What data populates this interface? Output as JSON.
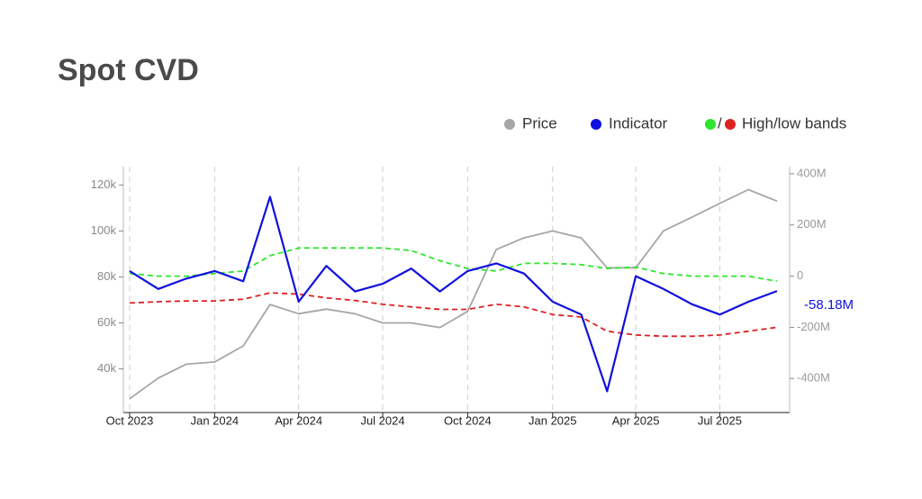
{
  "chart_data": {
    "type": "line",
    "title": "Spot CVD",
    "x": [
      "2023-10",
      "2023-11",
      "2023-12",
      "2024-01",
      "2024-02",
      "2024-03",
      "2024-04",
      "2024-05",
      "2024-06",
      "2024-07",
      "2024-08",
      "2024-09",
      "2024-10",
      "2024-11",
      "2024-12",
      "2025-01",
      "2025-02",
      "2025-03",
      "2025-04",
      "2025-05",
      "2025-06",
      "2025-07",
      "2025-08",
      "2025-09"
    ],
    "xlim": [
      "2023-10",
      "2025-09"
    ],
    "xticks": [
      {
        "value": "2023-10",
        "label": "Oct 2023"
      },
      {
        "value": "2024-01",
        "label": "Jan 2024"
      },
      {
        "value": "2024-04",
        "label": "Apr 2024"
      },
      {
        "value": "2024-07",
        "label": "Jul 2024"
      },
      {
        "value": "2024-10",
        "label": "Oct 2024"
      },
      {
        "value": "2025-01",
        "label": "Jan 2025"
      },
      {
        "value": "2025-04",
        "label": "Apr 2025"
      },
      {
        "value": "2025-07",
        "label": "Jul 2025"
      }
    ],
    "ylim": [
      21000,
      128000
    ],
    "yticks": [
      {
        "value": 40000,
        "label": "40k"
      },
      {
        "value": 60000,
        "label": "60k"
      },
      {
        "value": 80000,
        "label": "80k"
      },
      {
        "value": 100000,
        "label": "100k"
      },
      {
        "value": 120000,
        "label": "120k"
      }
    ],
    "y2lim": [
      -533,
      428
    ],
    "y2ticks": [
      {
        "value": -400,
        "label": "-400M"
      },
      {
        "value": -200,
        "label": "-200M"
      },
      0,
      {
        "value": 200,
        "label": "200M"
      },
      {
        "value": 400,
        "label": "400M"
      }
    ],
    "grid": true,
    "series": [
      {
        "name": "Price",
        "color": "#a6a6a6",
        "values": [
          27000,
          36000,
          42000,
          43000,
          50000,
          68000,
          64000,
          66000,
          64000,
          60000,
          60000,
          58000,
          65000,
          92000,
          97000,
          100000,
          97000,
          84000,
          84000,
          100000,
          106000,
          112000,
          118000,
          113000
        ]
      },
      {
        "name": "Indicator",
        "color": "#1010e0",
        "axis": "y2",
        "values": [
          20,
          -50,
          -10,
          20,
          -20,
          310,
          -100,
          40,
          -60,
          -30,
          30,
          -60,
          20,
          50,
          10,
          -100,
          -150,
          -450,
          0,
          -50,
          -110,
          -150,
          -100,
          -58.18
        ],
        "value_labels": [
          null,
          null,
          null,
          null,
          null,
          null,
          null,
          null,
          null,
          null,
          null,
          null,
          null,
          null,
          null,
          null,
          null,
          null,
          null,
          null,
          null,
          null,
          null,
          "-58.18M"
        ]
      },
      {
        "color": "#2ee62e",
        "axis": "y2",
        "dashed": true,
        "values": [
          10,
          0,
          0,
          10,
          20,
          80,
          110,
          110,
          110,
          110,
          100,
          60,
          30,
          20,
          50,
          50,
          45,
          30,
          35,
          10,
          0,
          0,
          0,
          -20
        ]
      },
      {
        "color": "#dd2222",
        "axis": "y2",
        "dashed": true,
        "values": [
          -105,
          -100,
          -97,
          -97,
          -90,
          -65,
          -70,
          -85,
          -95,
          -110,
          -120,
          -130,
          -130,
          -110,
          -120,
          -150,
          -160,
          -215,
          -230,
          -235,
          -235,
          -230,
          -215,
          -200
        ]
      }
    ],
    "band_legend": {
      "label": "High/low bands",
      "separator": "/"
    }
  }
}
